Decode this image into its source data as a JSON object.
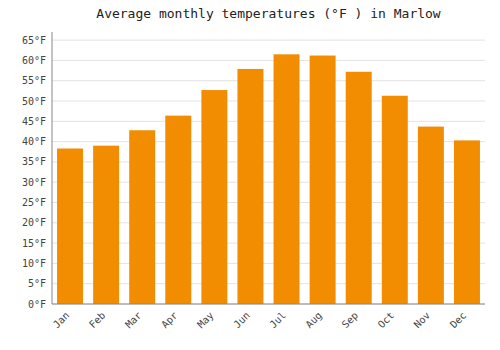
{
  "chart_data": {
    "type": "bar",
    "title": "Average monthly temperatures (°F ) in Marlow",
    "categories": [
      "Jan",
      "Feb",
      "Mar",
      "Apr",
      "May",
      "Jun",
      "Jul",
      "Aug",
      "Sep",
      "Oct",
      "Nov",
      "Dec"
    ],
    "values": [
      38.3,
      39.0,
      42.8,
      46.4,
      52.7,
      57.9,
      61.5,
      61.2,
      57.2,
      51.3,
      43.7,
      40.3
    ],
    "color": "#F28C00",
    "ylim": [
      0,
      67
    ],
    "yticks": [
      {
        "value": 0,
        "label": "0°F"
      },
      {
        "value": 5,
        "label": "5°F"
      },
      {
        "value": 10,
        "label": "10°F"
      },
      {
        "value": 15,
        "label": "15°F"
      },
      {
        "value": 20,
        "label": "20°F"
      },
      {
        "value": 25,
        "label": "25°F"
      },
      {
        "value": 30,
        "label": "30°F"
      },
      {
        "value": 35,
        "label": "35°F"
      },
      {
        "value": 40,
        "label": "40°F"
      },
      {
        "value": 45,
        "label": "45°F"
      },
      {
        "value": 50,
        "label": "50°F"
      },
      {
        "value": 55,
        "label": "55°F"
      },
      {
        "value": 60,
        "label": "60°F"
      },
      {
        "value": 65,
        "label": "65°F"
      }
    ],
    "grid": true
  }
}
